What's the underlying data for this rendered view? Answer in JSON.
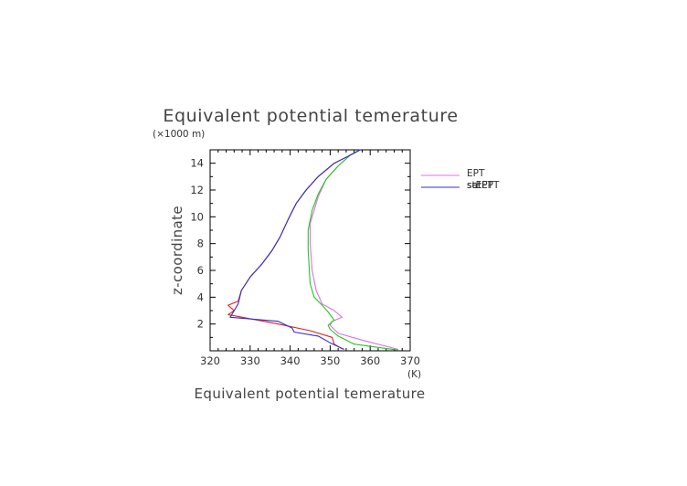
{
  "chart_data": {
    "type": "line",
    "title": "Equivalent potential temerature",
    "xlabel": "Equivalent potential temerature",
    "ylabel": "z-coordinate",
    "x_unit": "(K)",
    "y_unit": "(×1000 m)",
    "xlim": [
      320,
      370
    ],
    "ylim": [
      0,
      15
    ],
    "xticks": [
      "320",
      "330",
      "340",
      "350",
      "360",
      "370"
    ],
    "yticks": [
      "2",
      "4",
      "6",
      "8",
      "10",
      "12",
      "14"
    ],
    "grid": false,
    "legend_position": "right",
    "series": [
      {
        "name": "EPT",
        "color": "#e02020",
        "points": [
          [
            353,
            0.15
          ],
          [
            351,
            0.5
          ],
          [
            350.5,
            1.0
          ],
          [
            345,
            1.5
          ],
          [
            337,
            2.0
          ],
          [
            324.5,
            2.7
          ],
          [
            326,
            3.0
          ],
          [
            324.5,
            3.4
          ],
          [
            327,
            3.7
          ],
          [
            327.8,
            4.5
          ],
          [
            330,
            5.5
          ],
          [
            333,
            6.5
          ],
          [
            335.5,
            7.5
          ],
          [
            337.5,
            8.5
          ],
          [
            339.5,
            9.8
          ],
          [
            341.5,
            11.0
          ],
          [
            344,
            12.0
          ],
          [
            347,
            13.0
          ],
          [
            351,
            14.0
          ],
          [
            355,
            14.6
          ],
          [
            357.5,
            15.0
          ]
        ]
      },
      {
        "name": "satEPT",
        "color": "#e070e0",
        "points": [
          [
            367,
            0.1
          ],
          [
            358,
            0.8
          ],
          [
            352,
            1.3
          ],
          [
            350,
            1.9
          ],
          [
            350.5,
            2.2
          ],
          [
            353,
            2.5
          ],
          [
            351,
            3.0
          ],
          [
            348,
            3.5
          ],
          [
            346.5,
            4.5
          ],
          [
            345.5,
            6.0
          ],
          [
            345,
            8.0
          ],
          [
            345,
            9.5
          ],
          [
            346,
            10.5
          ],
          [
            347,
            11.5
          ],
          [
            349,
            12.8
          ],
          [
            352,
            13.8
          ],
          [
            355,
            14.6
          ],
          [
            357.5,
            15.0
          ]
        ]
      },
      {
        "name": "set",
        "color": "#20c820",
        "points": [
          [
            367,
            0.05
          ],
          [
            356,
            0.5
          ],
          [
            352,
            1.1
          ],
          [
            350,
            1.6
          ],
          [
            349.5,
            1.9
          ],
          [
            351,
            2.3
          ],
          [
            349.5,
            2.9
          ],
          [
            348,
            3.4
          ],
          [
            346,
            4.0
          ],
          [
            345,
            5.0
          ],
          [
            344.5,
            7.5
          ],
          [
            344.5,
            9.0
          ],
          [
            345.5,
            10.5
          ],
          [
            347,
            11.7
          ],
          [
            349,
            12.8
          ],
          [
            352,
            13.8
          ],
          [
            355,
            14.6
          ],
          [
            357.5,
            15.0
          ]
        ]
      },
      {
        "name": "stEPT",
        "color": "#3030c8",
        "points": [
          [
            353.5,
            0.1
          ],
          [
            350,
            0.6
          ],
          [
            347,
            1.1
          ],
          [
            341,
            1.4
          ],
          [
            340.5,
            1.7
          ],
          [
            337,
            2.2
          ],
          [
            325,
            2.5
          ],
          [
            327,
            3.5
          ],
          [
            327.8,
            4.5
          ],
          [
            330,
            5.5
          ],
          [
            333,
            6.5
          ],
          [
            335.5,
            7.5
          ],
          [
            337.5,
            8.5
          ],
          [
            339.5,
            9.8
          ],
          [
            341.5,
            11.0
          ],
          [
            344,
            12.0
          ],
          [
            347,
            13.0
          ],
          [
            351,
            14.0
          ],
          [
            355,
            14.6
          ],
          [
            357.5,
            15.0
          ]
        ]
      }
    ]
  }
}
